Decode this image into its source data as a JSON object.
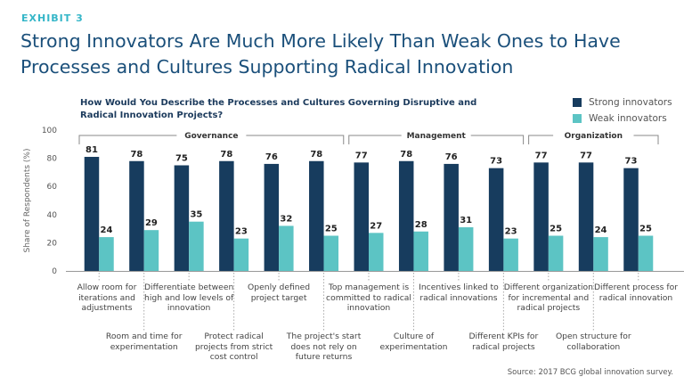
{
  "exhibit": "EXHIBIT 3",
  "headline": "Strong Innovators Are Much More Likely Than Weak Ones to Have Processes and Cultures Supporting Radical Innovation",
  "source": "Source: 2017 BCG global innovation survey.",
  "colors": {
    "strong": "#173c5e",
    "weak": "#5cc4c4",
    "accent": "#35b6c8",
    "title": "#1a4f7a"
  },
  "chart_data": {
    "type": "bar",
    "title": "How Would You Describe the Processes and Cultures Governing Disruptive and Radical Innovation Projects?",
    "ylabel": "Share of Respondents (%)",
    "ylim": [
      0,
      100
    ],
    "yticks": [
      0,
      20,
      40,
      60,
      80,
      100
    ],
    "categories": [
      "Allow room for iterations and adjustments",
      "Room and time for experimentation",
      "Differentiate between high and low levels of innovation",
      "Protect radical projects from strict cost control",
      "Openly defined project target",
      "The project's start does not rely on future returns",
      "Top management is committed to radical innovation",
      "Culture of experimentation",
      "Incentives linked to radical innovations",
      "Different KPIs for radical projects",
      "Different organization for incremental and radical projects",
      "Open structure for collaboration",
      "Different process for radical innovation"
    ],
    "series": [
      {
        "name": "Strong innovators",
        "values": [
          81,
          78,
          75,
          78,
          76,
          78,
          77,
          78,
          76,
          73,
          77,
          77,
          73
        ]
      },
      {
        "name": "Weak innovators",
        "values": [
          24,
          29,
          35,
          23,
          32,
          25,
          27,
          28,
          31,
          23,
          25,
          24,
          25
        ]
      }
    ],
    "groups": [
      {
        "name": "Governance",
        "start": 0,
        "end": 5
      },
      {
        "name": "Management",
        "start": 6,
        "end": 9
      },
      {
        "name": "Organization",
        "start": 10,
        "end": 12
      }
    ],
    "legend_position": "top-right"
  }
}
